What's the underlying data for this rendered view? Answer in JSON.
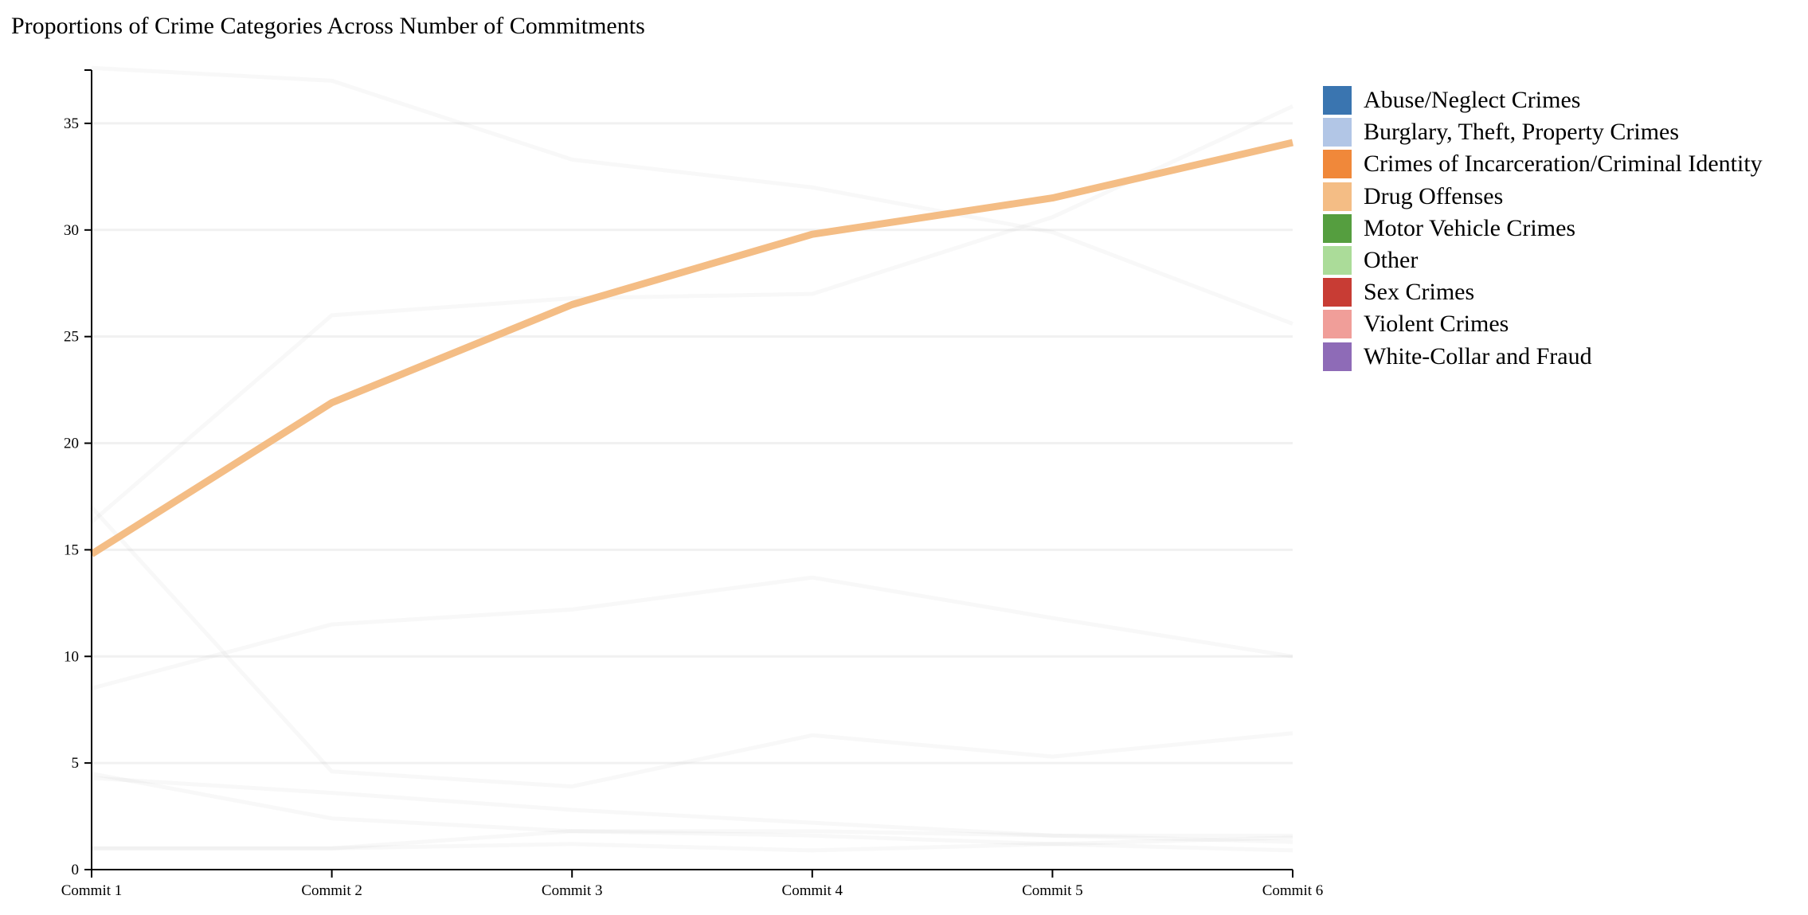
{
  "chart_data": {
    "type": "line",
    "title": "Proportions of Crime Categories Across Number of Commitments",
    "xlabel": "",
    "ylabel": "",
    "categories": [
      "Commit 1",
      "Commit 2",
      "Commit 3",
      "Commit 4",
      "Commit 5",
      "Commit 6"
    ],
    "ylim": [
      0,
      37.5
    ],
    "yticks": [
      "0",
      "5",
      "10",
      "15",
      "20",
      "25",
      "30",
      "35"
    ],
    "grid": "horizontal",
    "legend_position": "right",
    "highlighted_series": "Drug Offenses",
    "series": [
      {
        "name": "Abuse/Neglect Crimes",
        "color": "#3a75b0",
        "values": [
          4.3,
          3.6,
          2.8,
          2.2,
          1.6,
          1.3
        ]
      },
      {
        "name": "Burglary, Theft, Property Crimes",
        "color": "#b2c6e6",
        "values": [
          37.6,
          37.0,
          33.3,
          32.0,
          29.9,
          25.6
        ]
      },
      {
        "name": "Crimes of Incarceration/Criminal Identity",
        "color": "#f0883a",
        "values": [
          1.0,
          1.0,
          1.8,
          1.8,
          1.6,
          1.6
        ]
      },
      {
        "name": "Drug Offenses",
        "color": "#f4bd85",
        "values": [
          14.8,
          21.9,
          26.5,
          29.8,
          31.5,
          34.1
        ]
      },
      {
        "name": "Motor Vehicle Crimes",
        "color": "#559e3f",
        "values": [
          8.5,
          11.5,
          12.2,
          13.7,
          11.8,
          10.0
        ]
      },
      {
        "name": "Other",
        "color": "#abdc99",
        "values": [
          16.3,
          26.0,
          26.8,
          27.0,
          30.6,
          35.8
        ]
      },
      {
        "name": "Sex Crimes",
        "color": "#c83c34",
        "values": [
          4.5,
          2.4,
          1.8,
          1.6,
          1.2,
          0.9
        ]
      },
      {
        "name": "Violent Crimes",
        "color": "#f09e99",
        "values": [
          17.0,
          4.6,
          3.9,
          6.3,
          5.3,
          6.4
        ]
      },
      {
        "name": "White-Collar and Fraud",
        "color": "#8e6bb7",
        "values": [
          1.0,
          1.0,
          1.2,
          0.9,
          1.2,
          1.5
        ]
      }
    ]
  }
}
